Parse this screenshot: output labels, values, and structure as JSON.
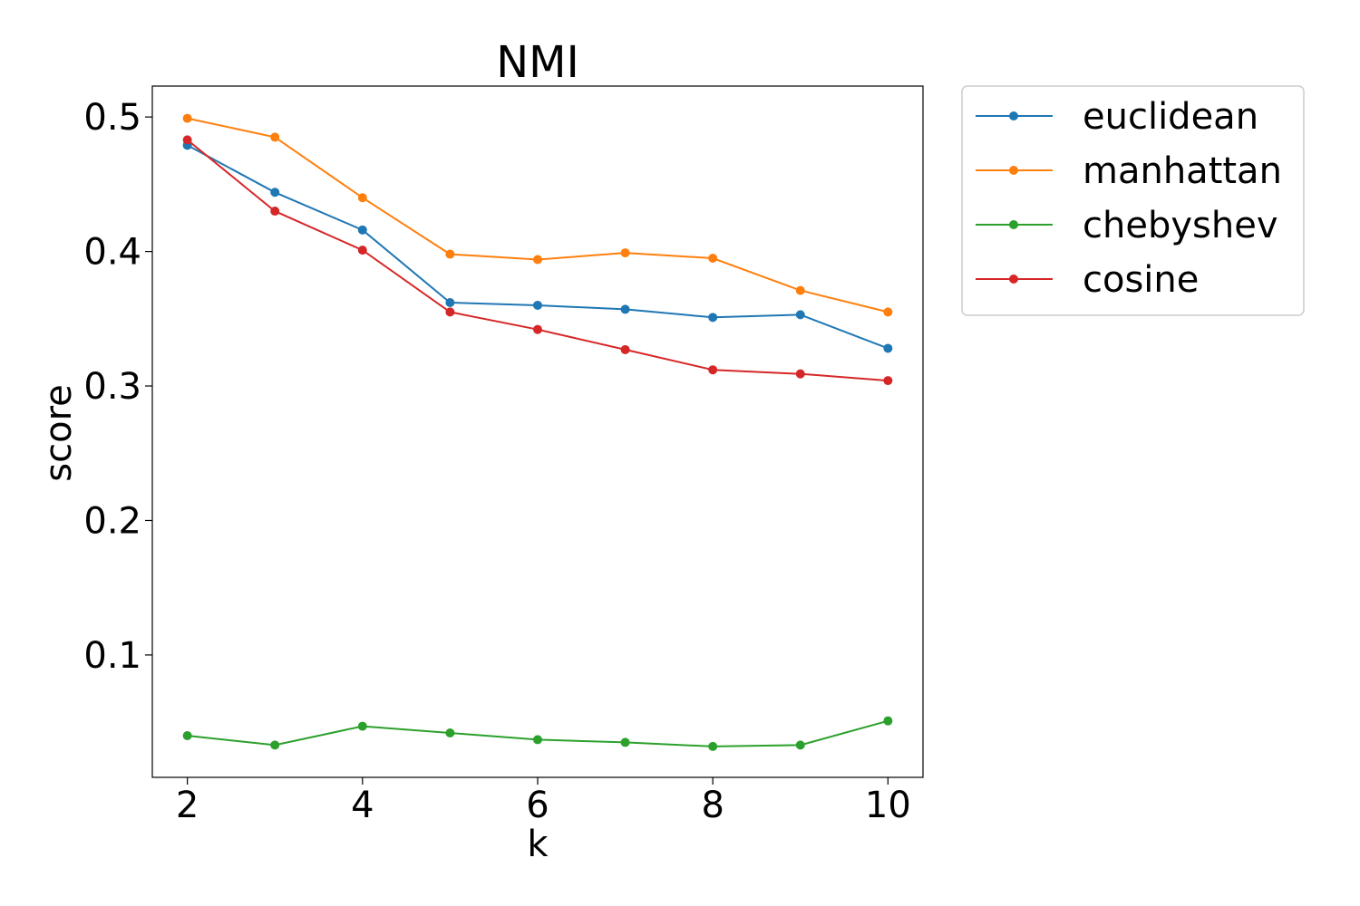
{
  "chart_data": {
    "type": "line",
    "title": "NMI",
    "xlabel": "k",
    "ylabel": "score",
    "x": [
      2,
      3,
      4,
      5,
      6,
      7,
      8,
      9,
      10
    ],
    "xlim": [
      1.6,
      10.4
    ],
    "ylim": [
      0.009,
      0.523
    ],
    "xticks": [
      2,
      4,
      6,
      8,
      10
    ],
    "yticks": [
      0.1,
      0.2,
      0.3,
      0.4,
      0.5
    ],
    "xtick_labels": [
      "2",
      "4",
      "6",
      "8",
      "10"
    ],
    "ytick_labels": [
      "0.1",
      "0.2",
      "0.3",
      "0.4",
      "0.5"
    ],
    "grid": false,
    "legend_position": "outside-upper-right",
    "series": [
      {
        "name": "euclidean",
        "color": "#1f77b4",
        "values": [
          0.479,
          0.444,
          0.416,
          0.362,
          0.36,
          0.357,
          0.351,
          0.353,
          0.328
        ]
      },
      {
        "name": "manhattan",
        "color": "#ff7f0e",
        "values": [
          0.499,
          0.485,
          0.44,
          0.398,
          0.394,
          0.399,
          0.395,
          0.371,
          0.355
        ]
      },
      {
        "name": "chebyshev",
        "color": "#2ca02c",
        "values": [
          0.04,
          0.033,
          0.047,
          0.042,
          0.037,
          0.035,
          0.032,
          0.033,
          0.051
        ]
      },
      {
        "name": "cosine",
        "color": "#d62728",
        "values": [
          0.483,
          0.43,
          0.401,
          0.355,
          0.342,
          0.327,
          0.312,
          0.309,
          0.304
        ]
      }
    ]
  }
}
